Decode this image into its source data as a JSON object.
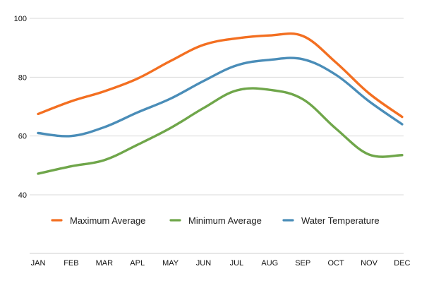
{
  "chart_data": {
    "type": "line",
    "title": "",
    "xlabel": "",
    "ylabel": "",
    "categories": [
      "JAN",
      "FEB",
      "MAR",
      "APL",
      "MAY",
      "JUN",
      "JUL",
      "AUG",
      "SEP",
      "OCT",
      "NOV",
      "DEC"
    ],
    "ylim": [
      20,
      100
    ],
    "yticks": [
      40,
      60,
      80,
      100
    ],
    "grid": true,
    "legend_placement": "inside-bottom",
    "series": [
      {
        "name": "Maximum Average",
        "color": "#f36f21",
        "values": [
          67.5,
          71.8,
          75.2,
          79.5,
          85.5,
          91.0,
          93.2,
          94.2,
          94.0,
          85.0,
          74.5,
          66.5
        ]
      },
      {
        "name": "Minimum Average",
        "color": "#6fa64a",
        "values": [
          47.2,
          49.7,
          51.8,
          57.0,
          62.7,
          69.5,
          75.5,
          75.7,
          72.5,
          62.5,
          53.7,
          53.5
        ]
      },
      {
        "name": "Water Temperature",
        "color": "#4a8db8",
        "values": [
          61.0,
          60.0,
          63.0,
          68.0,
          72.7,
          78.7,
          84.0,
          85.9,
          86.1,
          80.8,
          71.8,
          64.0
        ]
      }
    ]
  }
}
